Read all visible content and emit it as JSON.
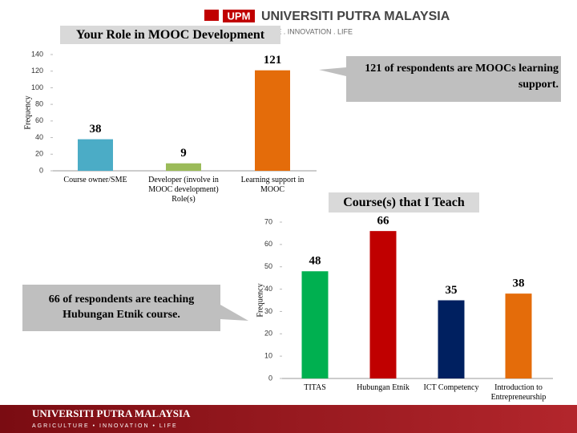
{
  "header": {
    "logo": "UPM",
    "name": "UNIVERSITI PUTRA MALAYSIA",
    "tagline": "AGRICULTURE . INNOVATION . LIFE"
  },
  "chart_data": [
    {
      "type": "bar",
      "title": "Your Role in MOOC Development",
      "y_label": "Frequency",
      "categories": [
        "Course owner/SME",
        "Developer (involve in MOOC development) Role(s)",
        "Learning support in MOOC"
      ],
      "values": [
        38,
        9,
        121
      ],
      "colors": [
        "#4bacc6",
        "#9bbb59",
        "#e46c0a"
      ],
      "ylim": [
        0,
        140
      ],
      "yticks": [
        0,
        20,
        40,
        60,
        80,
        100,
        120,
        140
      ],
      "annotation": "121 of respondents are MOOCs learning support."
    },
    {
      "type": "bar",
      "title": "Course(s) that I Teach",
      "y_label": "Frequency",
      "categories": [
        "TITAS",
        "Hubungan Etnik",
        "ICT Competency",
        "Introduction to Entrepreneurship"
      ],
      "values": [
        48,
        66,
        35,
        38
      ],
      "colors": [
        "#00b050",
        "#c00000",
        "#002060",
        "#e46c0a"
      ],
      "ylim": [
        0,
        70
      ],
      "yticks": [
        0,
        10,
        20,
        30,
        40,
        50,
        60,
        70
      ],
      "annotation": "66 of respondents are teaching Hubungan Etnik course."
    }
  ],
  "footer": {
    "name": "UNIVERSITI PUTRA MALAYSIA",
    "tagline": "AGRICULTURE • INNOVATION • LIFE"
  }
}
